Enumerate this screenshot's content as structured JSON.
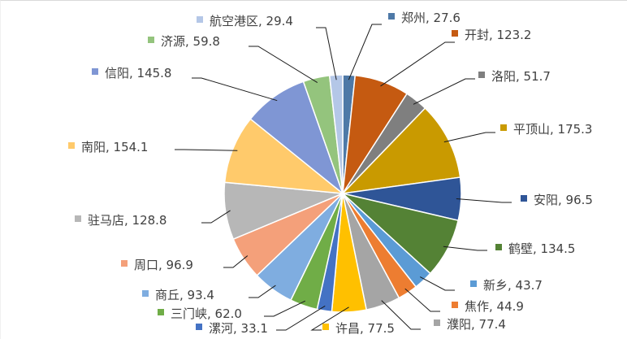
{
  "chart_data": {
    "type": "pie",
    "title": "",
    "label_format": "{name}, {value}",
    "start_angle_deg": 0,
    "direction": "clockwise",
    "legend": "none (data labels with color markers and leader lines)",
    "slices": [
      {
        "name": "郑州",
        "value": 27.6,
        "color": "#4E79A7",
        "label": "郑州, 27.6"
      },
      {
        "name": "开封",
        "value": 123.2,
        "color": "#C55A11",
        "label": "开封, 123.2"
      },
      {
        "name": "洛阳",
        "value": 51.7,
        "color": "#7F7F7F",
        "label": "洛阳, 51.7"
      },
      {
        "name": "平顶山",
        "value": 175.3,
        "color": "#C99A00",
        "label": "平顶山, 175.3"
      },
      {
        "name": "安阳",
        "value": 96.5,
        "color": "#2F5597",
        "label": "安阳, 96.5"
      },
      {
        "name": "鹤壁",
        "value": 134.5,
        "color": "#548235",
        "label": "鹤壁, 134.5"
      },
      {
        "name": "新乡",
        "value": 43.7,
        "color": "#5B9BD5",
        "label": "新乡, 43.7"
      },
      {
        "name": "焦作",
        "value": 44.9,
        "color": "#ED7D31",
        "label": "焦作, 44.9"
      },
      {
        "name": "濮阳",
        "value": 77.4,
        "color": "#A5A5A5",
        "label": "濮阳, 77.4"
      },
      {
        "name": "许昌",
        "value": 77.5,
        "color": "#FFC000",
        "label": "许昌, 77.5"
      },
      {
        "name": "漯河",
        "value": 33.1,
        "color": "#4472C4",
        "label": "漯河, 33.1"
      },
      {
        "name": "三门峡",
        "value": 62.0,
        "color": "#70AD47",
        "label": "三门峡, 62.0"
      },
      {
        "name": "商丘",
        "value": 93.4,
        "color": "#7FADE0",
        "label": "商丘, 93.4"
      },
      {
        "name": "周口",
        "value": 96.9,
        "color": "#F4A07A",
        "label": "周口, 96.9"
      },
      {
        "name": "驻马店",
        "value": 128.8,
        "color": "#B7B7B7",
        "label": "驻马店, 128.8"
      },
      {
        "name": "南阳",
        "value": 154.1,
        "color": "#FFCA6B",
        "label": "南阳, 154.1"
      },
      {
        "name": "信阳",
        "value": 145.8,
        "color": "#7F96D4",
        "label": "信阳, 145.8"
      },
      {
        "name": "济源",
        "value": 59.8,
        "color": "#94C47D",
        "label": "济源, 59.8"
      },
      {
        "name": "航空港区",
        "value": 29.4,
        "color": "#B4C7E7",
        "label": "航空港区, 29.4"
      }
    ]
  },
  "labels": {
    "zhengzhou": "郑州, 27.6",
    "kaifeng": "开封, 123.2",
    "luoyang": "洛阳, 51.7",
    "pingdingshan": "平顶山, 175.3",
    "anyang": "安阳, 96.5",
    "hebi": "鹤壁, 134.5",
    "xinxiang": "新乡, 43.7",
    "jiaozuo": "焦作, 44.9",
    "puyang": "濮阳, 77.4",
    "xuchang": "许昌, 77.5",
    "luohe": "漯河, 33.1",
    "sanmenxia": "三门峡, 62.0",
    "shangqiu": "商丘, 93.4",
    "zhoukou": "周口, 96.9",
    "zhumadian": "驻马店, 128.8",
    "nanyang": "南阳, 154.1",
    "xinyang": "信阳, 145.8",
    "jiyuan": "济源, 59.8",
    "hangkonggang": "航空港区, 29.4"
  }
}
